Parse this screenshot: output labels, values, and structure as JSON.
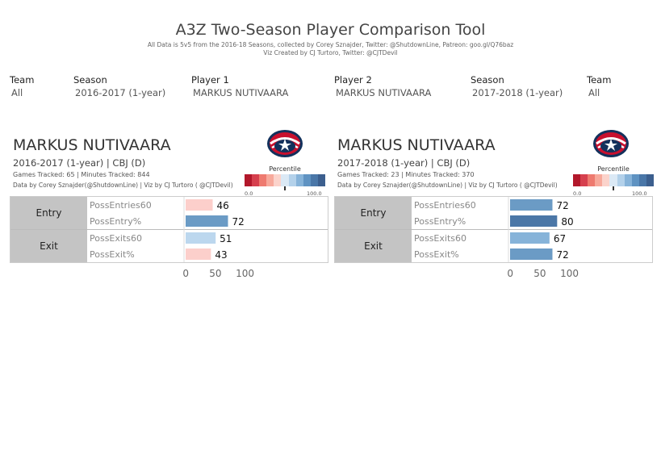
{
  "header": {
    "title": "A3Z Two-Season Player Comparison Tool",
    "subtitle1": "All Data is 5v5 from the 2016-18 Seasons, collected by Corey Sznajder, Twitter: @ShutdownLine, Patreon: goo.gl/Q76baz",
    "subtitle2": "Viz Created by CJ Turtoro, Twitter: @CJTDevil"
  },
  "filters": [
    {
      "label": "Team",
      "value": "All"
    },
    {
      "label": "Season",
      "value": "2016-2017 (1-year)"
    },
    {
      "label": "Player 1",
      "value": "MARKUS NUTIVAARA"
    },
    {
      "label": "Player 2",
      "value": "MARKUS NUTIVAARA"
    },
    {
      "label": "Season",
      "value": "2017-2018 (1-year)"
    },
    {
      "label": "Team",
      "value": "All"
    }
  ],
  "legend": {
    "title": "Percentile",
    "min_label": "0.0",
    "max_label": "100.0",
    "colors": [
      "#b2182b",
      "#d6404e",
      "#ee7a6f",
      "#f7a99b",
      "#fbd3cb",
      "#dbe9f5",
      "#b3d1ea",
      "#86b3d9",
      "#5f93c2",
      "#4a77a8",
      "#3c5f8e"
    ]
  },
  "players": [
    {
      "name": "MARKUS NUTIVAARA",
      "season_line": "2016-2017 (1-year) | CBJ (D)",
      "games_line": "Games Tracked: 65  | Minutes Tracked: 844",
      "credit_line": "Data by Corey Sznajder(@ShutdownLine) | Viz by CJ Turtoro ( @CJTDevil)",
      "logo": "blue-jackets-logo-icon"
    },
    {
      "name": "MARKUS NUTIVAARA",
      "season_line": "2017-2018 (1-year) | CBJ (D)",
      "games_line": "Games Tracked: 23  | Minutes Tracked: 370",
      "credit_line": "Data by Corey Sznajder(@ShutdownLine) | Viz by CJ Turtoro ( @CJTDevil)",
      "logo": "blue-jackets-logo-icon"
    }
  ],
  "chart_data": [
    {
      "type": "bar",
      "orientation": "horizontal",
      "groups": [
        {
          "name": "Entry",
          "metrics": [
            "PossEntries60",
            "PossEntry%"
          ]
        },
        {
          "name": "Exit",
          "metrics": [
            "PossExits60",
            "PossExit%"
          ]
        }
      ],
      "categories": [
        "PossEntries60",
        "PossEntry%",
        "PossExits60",
        "PossExit%"
      ],
      "values": [
        46,
        72,
        51,
        43
      ],
      "bar_colors": [
        "#fccfcb",
        "#6b9bc5",
        "#bcd7ee",
        "#fccfcb"
      ],
      "xlim": [
        0,
        120
      ],
      "xticks": [
        0,
        50,
        100
      ],
      "grid": false
    },
    {
      "type": "bar",
      "orientation": "horizontal",
      "groups": [
        {
          "name": "Entry",
          "metrics": [
            "PossEntries60",
            "PossEntry%"
          ]
        },
        {
          "name": "Exit",
          "metrics": [
            "PossExits60",
            "PossExit%"
          ]
        }
      ],
      "categories": [
        "PossEntries60",
        "PossEntry%",
        "PossExits60",
        "PossExit%"
      ],
      "values": [
        72,
        80,
        67,
        72
      ],
      "bar_colors": [
        "#6b9bc5",
        "#4b77a7",
        "#86b3d9",
        "#6b9bc5"
      ],
      "xlim": [
        0,
        120
      ],
      "xticks": [
        0,
        50,
        100
      ],
      "grid": false
    }
  ]
}
